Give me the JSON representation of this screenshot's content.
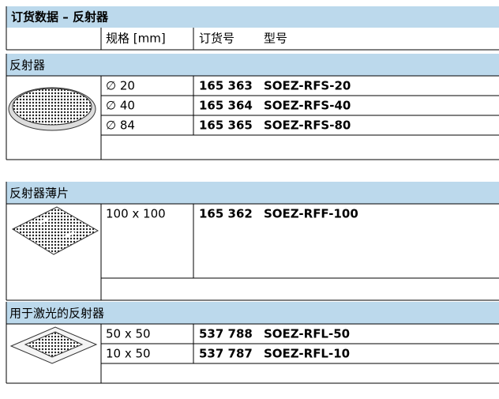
{
  "header": {
    "title": "订货数据 – 反射器",
    "columns": [
      "规格 [mm]",
      "订货号",
      "型号"
    ]
  },
  "sections": [
    {
      "title": "反射器",
      "rows": [
        [
          "∅ 20",
          "165 363",
          "SOEZ-RFS-20"
        ],
        [
          "∅ 40",
          "165 364",
          "SOEZ-RFS-40"
        ],
        [
          "∅ 84",
          "165 365",
          "SOEZ-RFS-80"
        ]
      ]
    },
    {
      "title": "反射器薄片",
      "rows": [
        [
          "100 x 100",
          "165 362",
          "SOEZ-RFF-100"
        ]
      ]
    },
    {
      "title": "用于激光的反射器",
      "rows": [
        [
          "50 x 50",
          "537 788",
          "SOEZ-RFL-50"
        ],
        [
          "10 x 50",
          "537 787",
          "SOEZ-RFL-10"
        ]
      ]
    }
  ]
}
